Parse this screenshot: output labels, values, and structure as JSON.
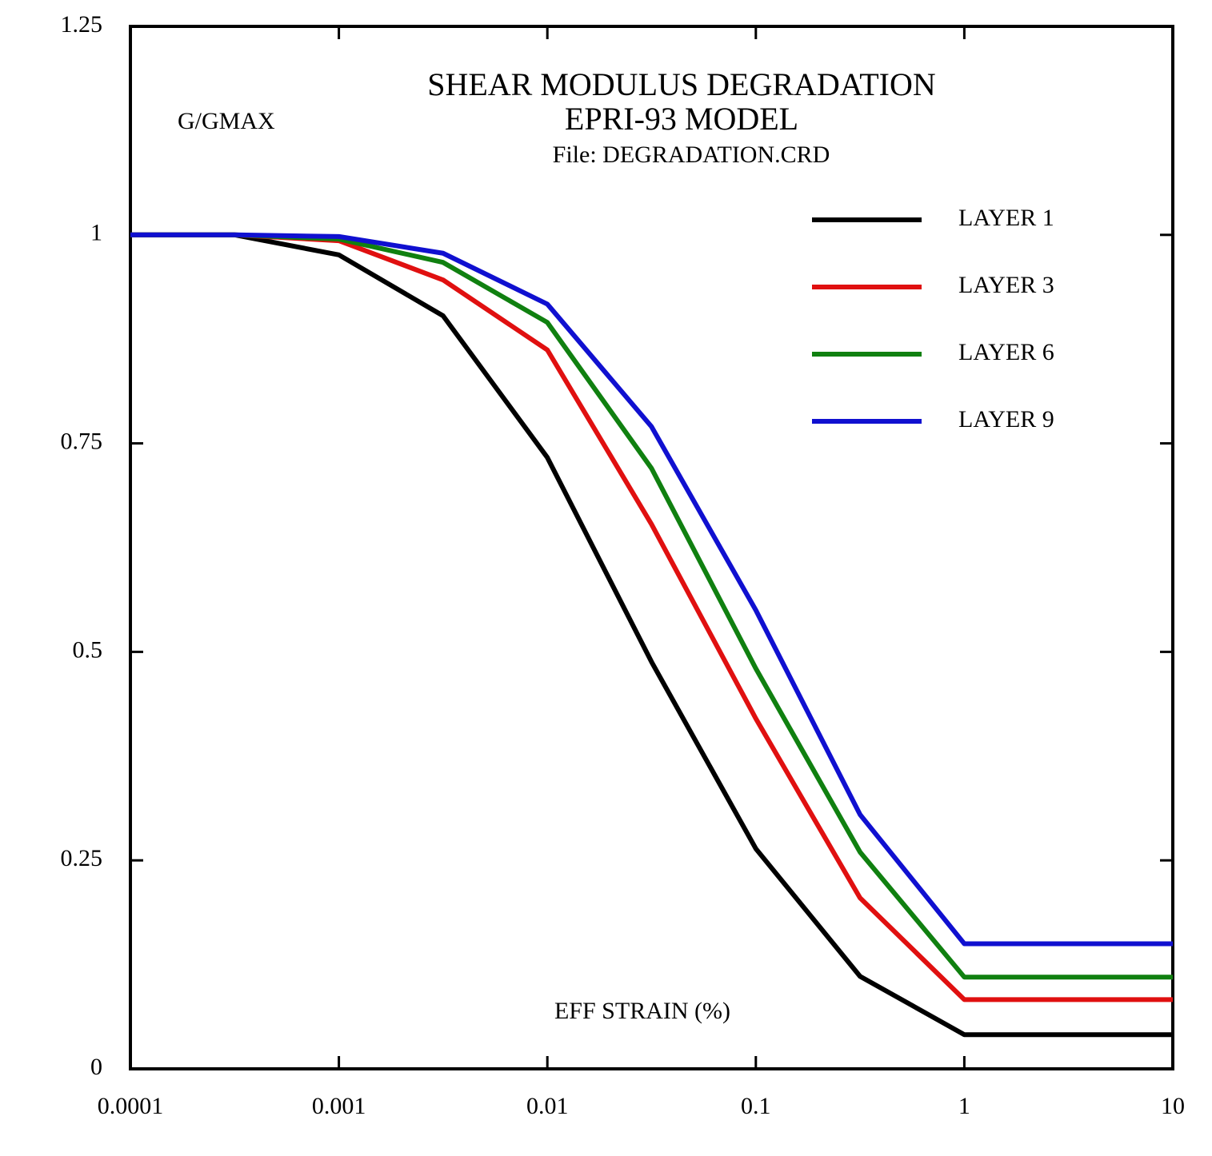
{
  "chart_data": {
    "type": "line",
    "title": "SHEAR MODULUS DEGRADATION",
    "subtitle": "EPRI-93 MODEL",
    "file_label": "File: DEGRADATION.CRD",
    "ylabel": "G/GMAX",
    "xlabel": "EFF STRAIN (%)",
    "x": [
      0.0001,
      0.000316,
      0.001,
      0.00316,
      0.01,
      0.0316,
      0.1,
      0.316,
      1,
      10
    ],
    "series": [
      {
        "name": "LAYER 1",
        "color": "#000000",
        "values": [
          1.0,
          1.0,
          0.976,
          0.903,
          0.733,
          0.488,
          0.264,
          0.111,
          0.041,
          0.041
        ]
      },
      {
        "name": "LAYER 3",
        "color": "#e01010",
        "values": [
          1.0,
          1.0,
          0.993,
          0.946,
          0.862,
          0.653,
          0.42,
          0.205,
          0.083,
          0.083
        ]
      },
      {
        "name": "LAYER 6",
        "color": "#108010",
        "values": [
          1.0,
          1.0,
          0.995,
          0.967,
          0.895,
          0.72,
          0.48,
          0.26,
          0.11,
          0.11
        ]
      },
      {
        "name": "LAYER 9",
        "color": "#1010d0",
        "values": [
          1.0,
          1.0,
          0.998,
          0.978,
          0.917,
          0.77,
          0.55,
          0.305,
          0.15,
          0.15
        ]
      }
    ],
    "xscale": "log",
    "xlim": [
      0.0001,
      10
    ],
    "xticks": [
      0.0001,
      0.001,
      0.01,
      0.1,
      1,
      10
    ],
    "ylim": [
      0,
      1.25
    ],
    "yticks": [
      0,
      0.25,
      0.5,
      0.75,
      1,
      1.25
    ],
    "legend": "upper right"
  }
}
